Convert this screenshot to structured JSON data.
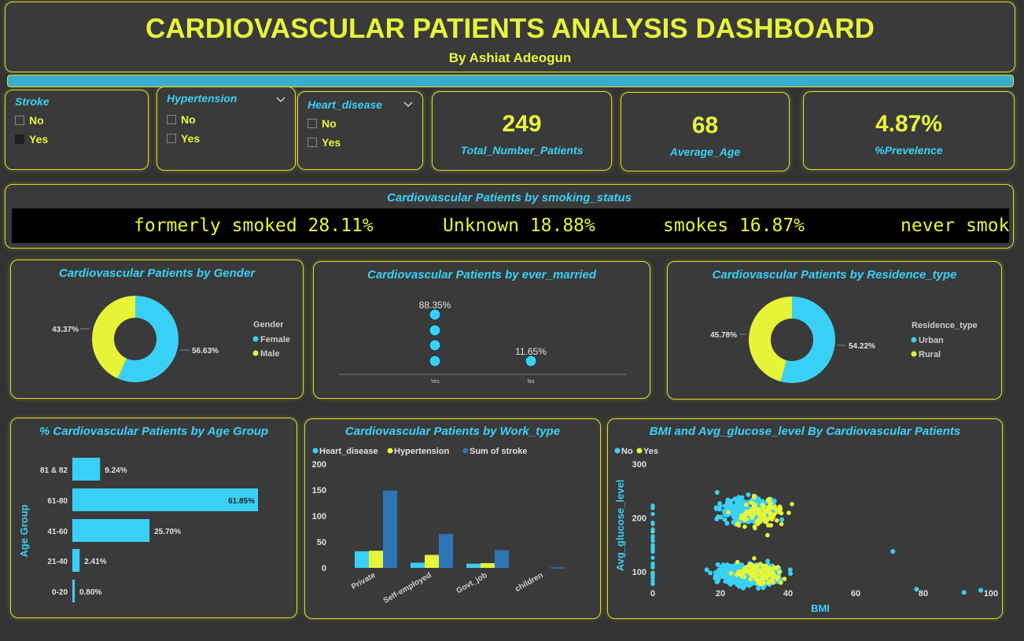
{
  "header": {
    "title": "CARDIOVASCULAR PATIENTS ANALYSIS DASHBOARD",
    "subtitle": "By Ashiat Adeogun"
  },
  "colors": {
    "cyan": "#3ad0f5",
    "yellow": "#e6f53a",
    "blue": "#2e75b6",
    "bg": "#333333",
    "border": "#d9e02a"
  },
  "slicers": {
    "stroke": {
      "title": "Stroke",
      "options": [
        {
          "label": "No",
          "checked": false
        },
        {
          "label": "Yes",
          "checked": true
        }
      ]
    },
    "hypertension": {
      "title": "Hypertension",
      "options": [
        {
          "label": "No",
          "checked": false
        },
        {
          "label": "Yes",
          "checked": false
        }
      ],
      "icon": "chevron-down-icon"
    },
    "heart_disease": {
      "title": "Heart_disease",
      "options": [
        {
          "label": "No",
          "checked": false
        },
        {
          "label": "Yes",
          "checked": false
        }
      ],
      "icon": "chevron-down-icon"
    }
  },
  "kpis": [
    {
      "value": "249",
      "label": "Total_Number_Patients"
    },
    {
      "value": "68",
      "label": "Average_Age"
    },
    {
      "value": "4.87%",
      "label": "%Prevelence"
    }
  ],
  "smoking": {
    "title": "Cardiovascular Patients by smoking_status",
    "items": [
      "formerly smoked 28.11%",
      "Unknown 18.88%",
      "smokes 16.87%",
      "never smok"
    ]
  },
  "chart_data": [
    {
      "type": "pie",
      "title": "Cardiovascular Patients by Gender",
      "legend_title": "Gender",
      "categories": [
        "Female",
        "Male"
      ],
      "values": [
        56.63,
        43.37
      ],
      "labels": [
        "56.63%",
        "43.37%"
      ],
      "colors": [
        "#3ad0f5",
        "#e6f53a"
      ]
    },
    {
      "type": "scatter",
      "title": "Cardiovascular Patients by ever_married",
      "categories": [
        "Yes",
        "No"
      ],
      "values": [
        88.35,
        11.65
      ],
      "labels": [
        "88.35%",
        "11.65%"
      ]
    },
    {
      "type": "pie",
      "title": "Cardiovascular Patients by Residence_type",
      "legend_title": "Residence_type",
      "categories": [
        "Urban",
        "Rural"
      ],
      "values": [
        54.22,
        45.78
      ],
      "labels": [
        "54.22%",
        "45.78%"
      ],
      "colors": [
        "#3ad0f5",
        "#e6f53a"
      ]
    },
    {
      "type": "bar",
      "title": "% Cardiovascular Patients by Age Group",
      "ylabel": "Age Group",
      "categories": [
        "81 & 82",
        "61-80",
        "41-60",
        "21-40",
        "0-20"
      ],
      "values": [
        9.24,
        61.85,
        25.7,
        2.41,
        0.8
      ],
      "labels": [
        "9.24%",
        "61.85%",
        "25.70%",
        "2.41%",
        "0.80%"
      ]
    },
    {
      "type": "bar",
      "title": "Cardiovascular Patients by Work_type",
      "categories": [
        "Private",
        "Self-employed",
        "Govt_job",
        "children"
      ],
      "series": [
        {
          "name": "Heart_disease",
          "values": [
            32,
            10,
            8,
            0
          ],
          "color": "#3ad0f5"
        },
        {
          "name": "Hypertension",
          "values": [
            33,
            25,
            9,
            0
          ],
          "color": "#e6f53a"
        },
        {
          "name": "Sum of stroke",
          "values": [
            149,
            65,
            34,
            1
          ],
          "color": "#2e75b6"
        }
      ],
      "yticks": [
        0,
        50,
        100,
        150,
        200
      ],
      "ylim": [
        0,
        200
      ]
    },
    {
      "type": "scatter",
      "title": "BMI and Avg_glucose_level By Cardiovascular Patients",
      "xlabel": "BMI",
      "ylabel": "Avg_glucose_level",
      "legend": [
        "No",
        "Yes"
      ],
      "xticks": [
        0,
        20,
        40,
        60,
        80,
        100
      ],
      "yticks": [
        100,
        200,
        300
      ],
      "xlim": [
        0,
        100
      ],
      "ylim": [
        55,
        300
      ]
    }
  ]
}
